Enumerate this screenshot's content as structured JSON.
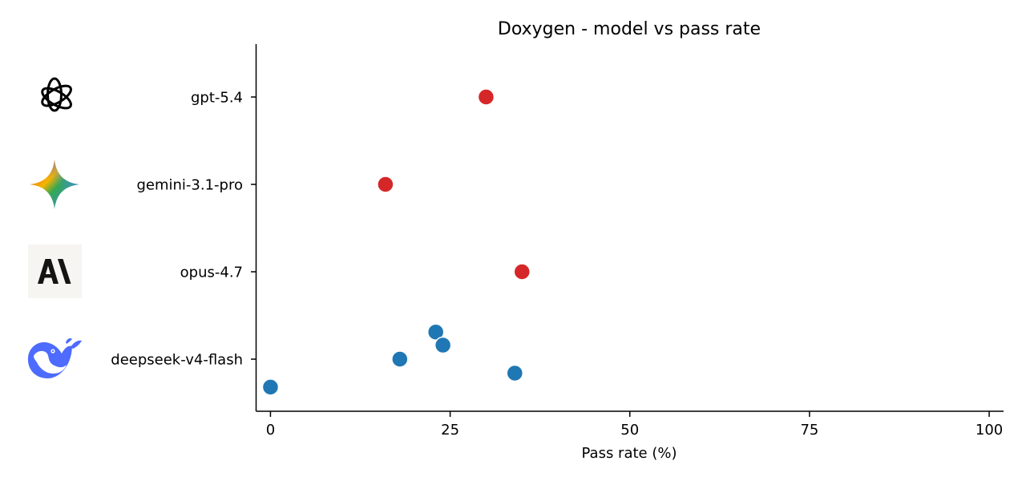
{
  "chart_data": {
    "type": "scatter",
    "title": "Doxygen - model vs pass rate",
    "xlabel": "Pass rate (%)",
    "ylabel": "",
    "xlim": [
      -2,
      102
    ],
    "xticks": [
      0,
      25,
      50,
      75,
      100
    ],
    "xtick_labels": [
      "0",
      "25",
      "50",
      "75",
      "100"
    ],
    "categories": [
      "gpt-5.4",
      "gemini-3.1-pro",
      "opus-4.7",
      "deepseek-v4-flash"
    ],
    "category_icons": [
      "openai-logo-icon",
      "gemini-sparkle-icon",
      "anthropic-logo-icon",
      "deepseek-whale-icon"
    ],
    "grid": false,
    "series": [
      {
        "color": "#d62728",
        "points": [
          {
            "category": "gpt-5.4",
            "x": 30,
            "jitter": 0
          },
          {
            "category": "gemini-3.1-pro",
            "x": 16,
            "jitter": 0
          },
          {
            "category": "opus-4.7",
            "x": 35,
            "jitter": 0
          }
        ]
      },
      {
        "color": "#1f77b4",
        "points": [
          {
            "category": "deepseek-v4-flash",
            "x": 23,
            "jitter": 0.31
          },
          {
            "category": "deepseek-v4-flash",
            "x": 24,
            "jitter": 0.16
          },
          {
            "category": "deepseek-v4-flash",
            "x": 18,
            "jitter": 0.0
          },
          {
            "category": "deepseek-v4-flash",
            "x": 34,
            "jitter": -0.16
          },
          {
            "category": "deepseek-v4-flash",
            "x": 0,
            "jitter": -0.32
          }
        ]
      }
    ]
  }
}
